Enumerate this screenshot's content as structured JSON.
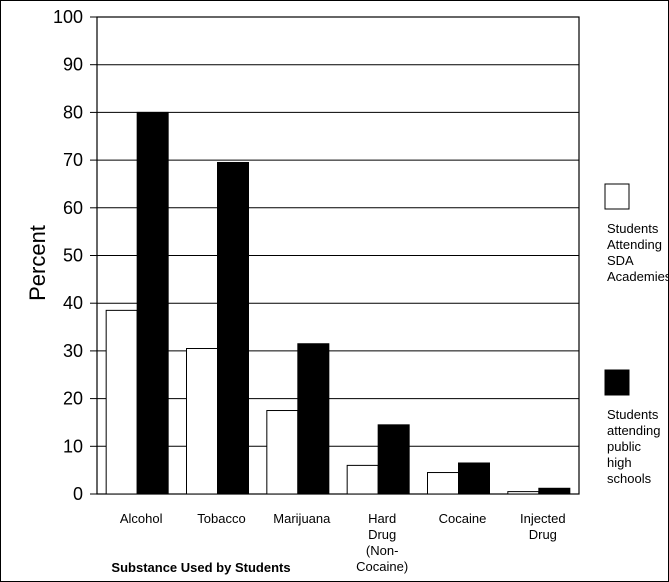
{
  "chart_data": {
    "type": "bar",
    "title": "",
    "xlabel": "Substance Used by Students",
    "ylabel": "Percent",
    "ylim": [
      0,
      100
    ],
    "yticks": [
      0,
      10,
      20,
      30,
      40,
      50,
      60,
      70,
      80,
      90,
      100
    ],
    "grid": true,
    "legend_position": "right",
    "categories": [
      [
        "Alcohol"
      ],
      [
        "Tobacco"
      ],
      [
        "Marijuana"
      ],
      [
        "Hard",
        "Drug",
        "(Non-",
        "Cocaine)"
      ],
      [
        "Cocaine"
      ],
      [
        "Injected",
        "Drug"
      ]
    ],
    "series": [
      {
        "name": [
          "Students",
          "Attending",
          "SDA",
          "Academies"
        ],
        "color": "#ffffff",
        "values": [
          38.5,
          30.5,
          17.5,
          6,
          4.5,
          0.5
        ]
      },
      {
        "name": [
          "Students",
          "attending",
          "public",
          "high",
          "schools"
        ],
        "color": "#000000",
        "values": [
          80,
          69.5,
          31.5,
          14.5,
          6.5,
          1.2
        ]
      }
    ]
  }
}
